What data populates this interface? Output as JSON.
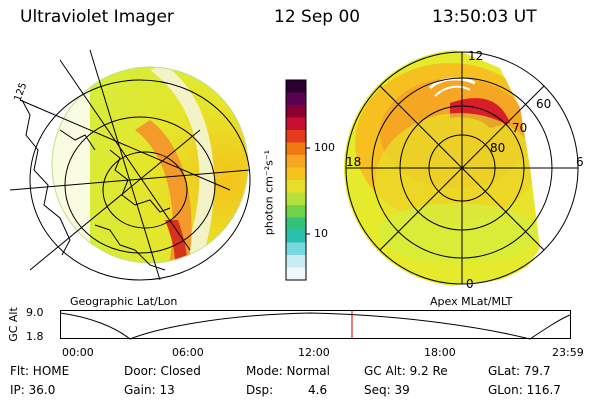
{
  "header": {
    "instrument": "Ultraviolet Imager",
    "date": "12 Sep 00",
    "time": "13:50:03 UT"
  },
  "left_panel": {
    "caption": "Geographic Lat/Lon",
    "corner_label": "125"
  },
  "colorbar": {
    "unit_label": "photon cm⁻²s⁻¹",
    "tick_labels": [
      "100",
      "10"
    ],
    "colors": [
      "#2b0030",
      "#5a0050",
      "#8a0030",
      "#c8102e",
      "#e23a1a",
      "#f07a12",
      "#f5a623",
      "#f6c21c",
      "#e8dd2a",
      "#b5e23a",
      "#6fd24a",
      "#34c17a",
      "#2bbfb0",
      "#7ad6e0",
      "#c8ecf2",
      "#f2f8fa"
    ]
  },
  "right_panel": {
    "caption": "Apex MLat/MLT",
    "mlt_labels": [
      "12",
      "18",
      "6",
      "0"
    ],
    "mlat_labels": [
      "60",
      "70",
      "80"
    ]
  },
  "altitude_plot": {
    "ylabel": "GC Alt",
    "yticks": [
      "9.0",
      "1.8"
    ],
    "xticks": [
      "00:00",
      "06:00",
      "12:00",
      "18:00",
      "23:59"
    ]
  },
  "status": {
    "flt": "Flt: HOME",
    "door": "Door: Closed",
    "mode": "Mode: Normal",
    "gc_alt": "GC Alt: 9.2 Re",
    "glat": "GLat:  79.7",
    "ip": "IP: 36.0",
    "gain": "Gain: 13",
    "dsp_label": "Dsp:",
    "dsp_value": "4.6",
    "seq": "Seq: 39",
    "glon": "GLon: 116.7"
  }
}
